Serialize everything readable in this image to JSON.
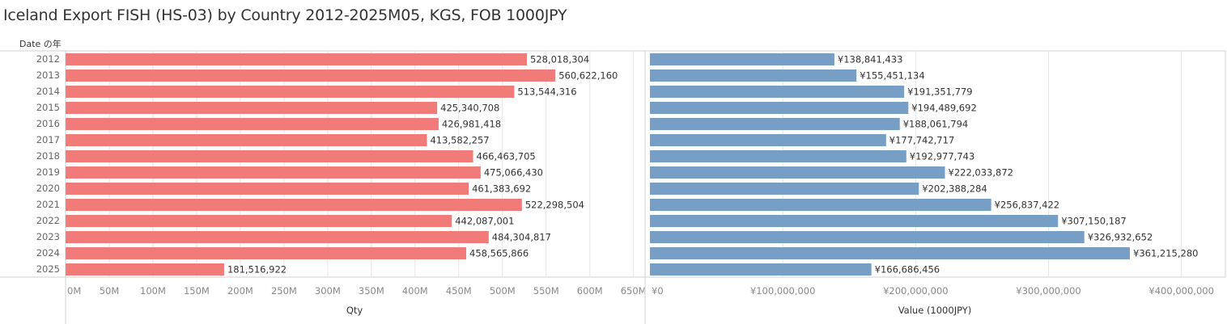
{
  "title": "Iceland Export FISH (HS-03) by Country 2012-2025M05, KGS, FOB 1000JPY",
  "row_header": "Date の年",
  "colors": {
    "qty_bar": "#f07b78",
    "value_bar": "#779fc5",
    "grid": "#e6e6e6",
    "axis_line": "#d0d0d0",
    "tick_text": "#888888",
    "label_text": "#333333"
  },
  "chart_data": [
    {
      "type": "bar",
      "orientation": "horizontal",
      "categories": [
        "2012",
        "2013",
        "2014",
        "2015",
        "2016",
        "2017",
        "2018",
        "2019",
        "2020",
        "2021",
        "2022",
        "2023",
        "2024",
        "2025"
      ],
      "values": [
        528018304,
        560622160,
        513544316,
        425340708,
        426981418,
        413582257,
        466463705,
        475066430,
        461383692,
        522298504,
        442087001,
        484304817,
        458565866,
        181516922
      ],
      "value_labels": [
        "528,018,304",
        "560,622,160",
        "513,544,316",
        "425,340,708",
        "426,981,418",
        "413,582,257",
        "466,463,705",
        "475,066,430",
        "461,383,692",
        "522,298,504",
        "442,087,001",
        "484,304,817",
        "458,565,866",
        "181,516,922"
      ],
      "xlabel": "Qty",
      "ylabel": "Date の年",
      "xlim": [
        0,
        660000000
      ],
      "ticks": [
        0,
        50000000,
        100000000,
        150000000,
        200000000,
        250000000,
        300000000,
        350000000,
        400000000,
        450000000,
        500000000,
        550000000,
        600000000,
        650000000
      ],
      "tick_labels": [
        "0M",
        "50M",
        "100M",
        "150M",
        "200M",
        "250M",
        "300M",
        "350M",
        "400M",
        "450M",
        "500M",
        "550M",
        "600M",
        "650M"
      ],
      "grid": true
    },
    {
      "type": "bar",
      "orientation": "horizontal",
      "categories": [
        "2012",
        "2013",
        "2014",
        "2015",
        "2016",
        "2017",
        "2018",
        "2019",
        "2020",
        "2021",
        "2022",
        "2023",
        "2024",
        "2025"
      ],
      "values": [
        138841433,
        155451134,
        191351779,
        194489692,
        188061794,
        177742717,
        192977743,
        222033872,
        202388284,
        256837422,
        307150187,
        326932652,
        361215280,
        166686456
      ],
      "value_labels": [
        "¥138,841,433",
        "¥155,451,134",
        "¥191,351,779",
        "¥194,489,692",
        "¥188,061,794",
        "¥177,742,717",
        "¥192,977,743",
        "¥222,033,872",
        "¥202,388,284",
        "¥256,837,422",
        "¥307,150,187",
        "¥326,932,652",
        "¥361,215,280",
        "¥166,686,456"
      ],
      "xlabel": "Value (1000JPY)",
      "xlim": [
        0,
        432000000
      ],
      "ticks": [
        0,
        100000000,
        200000000,
        300000000,
        400000000
      ],
      "tick_labels": [
        "¥0",
        "¥100,000,000",
        "¥200,000,000",
        "¥300,000,000",
        "¥400,000,000"
      ],
      "grid": true
    }
  ]
}
